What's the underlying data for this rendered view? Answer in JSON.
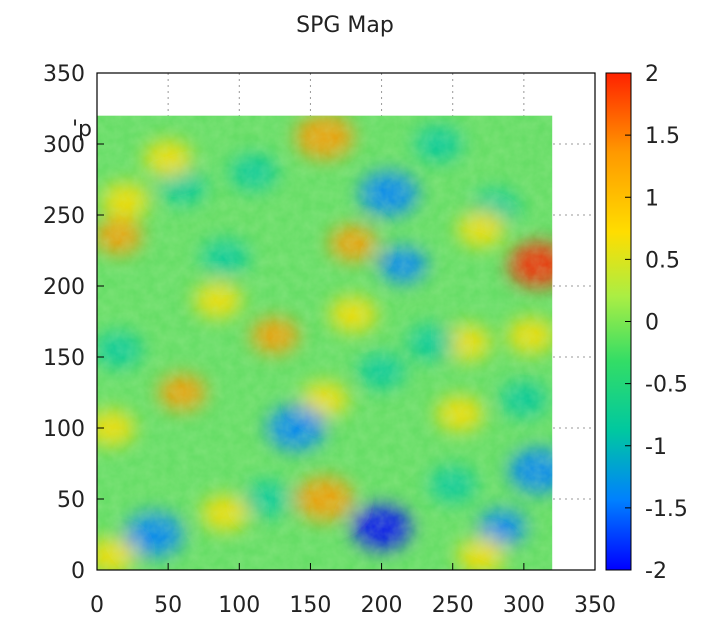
{
  "chart_data": {
    "type": "heatmap",
    "title": "SPG Map",
    "legend_key": "'p",
    "xlim": [
      0,
      350
    ],
    "ylim": [
      0,
      350
    ],
    "data_extent": {
      "x": [
        0,
        320
      ],
      "y": [
        0,
        320
      ]
    },
    "x_ticks": [
      "0",
      "50",
      "100",
      "150",
      "200",
      "250",
      "300",
      "350"
    ],
    "y_ticks": [
      "0",
      "50",
      "100",
      "150",
      "200",
      "250",
      "300",
      "350"
    ],
    "colorbar": {
      "range": [
        -2,
        2
      ],
      "ticks": [
        "2",
        "1.5",
        "1",
        "0.5",
        "0",
        "-0.5",
        "-1",
        "-1.5",
        "-2"
      ],
      "colormap": [
        "#0000ff",
        "#0080ff",
        "#00c8a0",
        "#33dd66",
        "#aaee44",
        "#ffdd00",
        "#ff9900",
        "#ff2200"
      ]
    },
    "grid": true,
    "grid_style": "dotted",
    "features": [
      {
        "x": 160,
        "y": 305,
        "v": 1.4
      },
      {
        "x": 205,
        "y": 265,
        "v": -1.6
      },
      {
        "x": 180,
        "y": 230,
        "v": 1.2
      },
      {
        "x": 310,
        "y": 215,
        "v": 1.8
      },
      {
        "x": 215,
        "y": 215,
        "v": -1.3
      },
      {
        "x": 85,
        "y": 190,
        "v": 1.0
      },
      {
        "x": 125,
        "y": 165,
        "v": 1.2
      },
      {
        "x": 260,
        "y": 160,
        "v": 1.0
      },
      {
        "x": 305,
        "y": 165,
        "v": 1.1
      },
      {
        "x": 60,
        "y": 125,
        "v": 1.2
      },
      {
        "x": 160,
        "y": 120,
        "v": 1.0
      },
      {
        "x": 255,
        "y": 110,
        "v": 1.1
      },
      {
        "x": 140,
        "y": 100,
        "v": -1.4
      },
      {
        "x": 10,
        "y": 100,
        "v": 0.8
      },
      {
        "x": 160,
        "y": 50,
        "v": 1.5
      },
      {
        "x": 90,
        "y": 40,
        "v": 1.1
      },
      {
        "x": 40,
        "y": 25,
        "v": -1.5
      },
      {
        "x": 200,
        "y": 30,
        "v": -1.8
      },
      {
        "x": 285,
        "y": 30,
        "v": -1.3
      },
      {
        "x": 310,
        "y": 70,
        "v": -1.4
      },
      {
        "x": 20,
        "y": 260,
        "v": 1.0
      },
      {
        "x": 15,
        "y": 155,
        "v": -1.0
      },
      {
        "x": 110,
        "y": 280,
        "v": -1.0
      },
      {
        "x": 60,
        "y": 270,
        "v": -1.0
      },
      {
        "x": 240,
        "y": 300,
        "v": -1.0
      },
      {
        "x": 280,
        "y": 255,
        "v": -0.9
      },
      {
        "x": 90,
        "y": 220,
        "v": -1.0
      },
      {
        "x": 235,
        "y": 160,
        "v": -1.0
      },
      {
        "x": 200,
        "y": 140,
        "v": -1.1
      },
      {
        "x": 300,
        "y": 120,
        "v": -0.9
      },
      {
        "x": 120,
        "y": 50,
        "v": -0.9
      },
      {
        "x": 250,
        "y": 60,
        "v": -1.0
      },
      {
        "x": 10,
        "y": 10,
        "v": 1.0
      },
      {
        "x": 15,
        "y": 235,
        "v": 1.2
      },
      {
        "x": 270,
        "y": 240,
        "v": 0.9
      },
      {
        "x": 180,
        "y": 180,
        "v": 0.8
      },
      {
        "x": 50,
        "y": 290,
        "v": 0.9
      },
      {
        "x": 270,
        "y": 10,
        "v": 0.9
      }
    ]
  }
}
